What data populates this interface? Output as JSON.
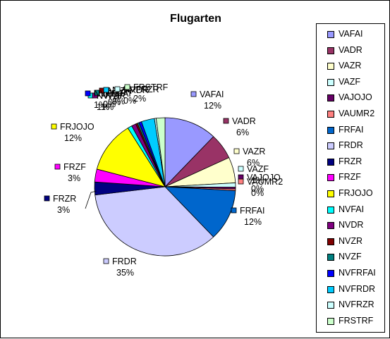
{
  "chart_data": {
    "type": "pie",
    "title": "Flugarten",
    "legend_position": "right",
    "slices": [
      {
        "name": "VAFAI",
        "value": 12,
        "label": "12%",
        "color": "#9999ff"
      },
      {
        "name": "VADR",
        "value": 6,
        "label": "6%",
        "color": "#993366"
      },
      {
        "name": "VAZR",
        "value": 6,
        "label": "6%",
        "color": "#ffffcc"
      },
      {
        "name": "VAZF",
        "value": 1,
        "label": "1%",
        "color": "#ccffff"
      },
      {
        "name": "VAJOJO",
        "value": 0.4,
        "label": "0%",
        "color": "#660066"
      },
      {
        "name": "VAUMR2",
        "value": 0.4,
        "label": "0%",
        "color": "#ff8080"
      },
      {
        "name": "FRFAI",
        "value": 12,
        "label": "12%",
        "color": "#0066cc"
      },
      {
        "name": "FRDR",
        "value": 35,
        "label": "35%",
        "color": "#ccccff"
      },
      {
        "name": "FRZR",
        "value": 3,
        "label": "3%",
        "color": "#000080"
      },
      {
        "name": "FRZF",
        "value": 3,
        "label": "3%",
        "color": "#ff00ff"
      },
      {
        "name": "FRJOJO",
        "value": 12,
        "label": "12%",
        "color": "#ffff00"
      },
      {
        "name": "NVFAI",
        "value": 1,
        "label": "1%",
        "color": "#00ffff"
      },
      {
        "name": "NVDR",
        "value": 1,
        "label": "1%",
        "color": "#800080"
      },
      {
        "name": "NVZR",
        "value": 0.4,
        "label": "0%",
        "color": "#800000"
      },
      {
        "name": "NVZF",
        "value": 0.4,
        "label": "0%",
        "color": "#008080"
      },
      {
        "name": "NVFRFAI",
        "value": 0.6,
        "label": "1%",
        "color": "#0000ff"
      },
      {
        "name": "NVFRDR",
        "value": 3,
        "label": "3%",
        "color": "#00ccff"
      },
      {
        "name": "NVFRZR",
        "value": 0.4,
        "label": "0%",
        "color": "#ccffff"
      },
      {
        "name": "FRSTRF",
        "value": 2,
        "label": "2%",
        "color": "#ccffcc"
      }
    ]
  }
}
